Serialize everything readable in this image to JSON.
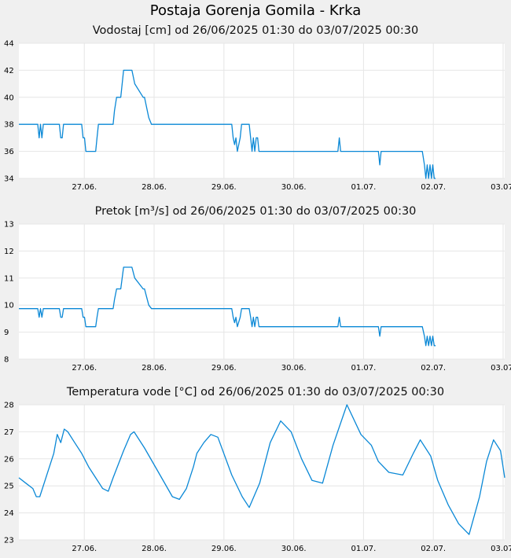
{
  "title": "Postaja Gorenja Gomila - Krka",
  "colors": {
    "line": "#0a88d6",
    "plot_bg": "#ffffff",
    "page_bg": "#f0f0f0",
    "grid": "#e6e6e6"
  },
  "x_ticks": [
    "27.06.",
    "28.06.",
    "29.06.",
    "30.06.",
    "01.07.",
    "02.07.",
    "03.07."
  ],
  "chart_data": [
    {
      "type": "line",
      "title": "Vodostaj [cm] od 26/06/2025 01:30 do 03/07/2025 00:30",
      "xlabel": "",
      "ylabel": "",
      "ylim": [
        34,
        44
      ],
      "y_ticks": [
        "34",
        "36",
        "38",
        "40",
        "42",
        "44"
      ],
      "x_tick_labels": [
        "27.06.",
        "28.06.",
        "29.06.",
        "30.06.",
        "01.07.",
        "02.07.",
        "03.07."
      ],
      "x_range_days": [
        0,
        6.96
      ],
      "grid": true,
      "x": [
        0,
        0.27,
        0.29,
        0.31,
        0.33,
        0.35,
        0.42,
        0.58,
        0.6,
        0.62,
        0.64,
        0.66,
        0.9,
        0.92,
        0.94,
        0.96,
        0.98,
        1.1,
        1.12,
        1.14,
        1.16,
        1.35,
        1.37,
        1.4,
        1.42,
        1.46,
        1.5,
        1.62,
        1.66,
        1.78,
        1.8,
        1.84,
        1.86,
        1.9,
        1.93,
        3.05,
        3.07,
        3.09,
        3.11,
        3.13,
        3.17,
        3.19,
        3.3,
        3.32,
        3.34,
        3.36,
        3.38,
        3.4,
        3.42,
        3.44,
        3.47,
        4.57,
        4.59,
        4.61,
        5.15,
        5.17,
        5.19,
        5.21,
        5.78,
        5.81,
        5.83,
        5.85,
        5.87,
        5.89,
        5.91,
        5.93,
        5.95,
        5.97
      ],
      "values": [
        38,
        38,
        37,
        38,
        37,
        38,
        38,
        38,
        37,
        37,
        38,
        38,
        38,
        37,
        37,
        36,
        36,
        36,
        37,
        38,
        38,
        38,
        39,
        40,
        40,
        40,
        42,
        42,
        41,
        40,
        40,
        39,
        38.5,
        38,
        38,
        38,
        37,
        36.5,
        37,
        36,
        37,
        38,
        38,
        37,
        36,
        37,
        36,
        37,
        37,
        36,
        36,
        36,
        37,
        36,
        36,
        35,
        36,
        36,
        36,
        35,
        34,
        35,
        34,
        35,
        34,
        35,
        34,
        34
      ]
    },
    {
      "type": "line",
      "title": "Pretok [m³/s] od 26/06/2025 01:30 do 03/07/2025 00:30",
      "xlabel": "",
      "ylabel": "",
      "ylim": [
        8,
        13
      ],
      "y_ticks": [
        "8",
        "9",
        "10",
        "11",
        "12",
        "13"
      ],
      "x_tick_labels": [
        "27.06.",
        "28.06.",
        "29.06.",
        "30.06.",
        "01.07.",
        "02.07.",
        "03.07."
      ],
      "x_range_days": [
        0,
        6.96
      ],
      "grid": true,
      "x": [
        0,
        0.27,
        0.29,
        0.31,
        0.33,
        0.35,
        0.42,
        0.58,
        0.6,
        0.62,
        0.64,
        0.66,
        0.9,
        0.92,
        0.94,
        0.96,
        0.98,
        1.1,
        1.12,
        1.14,
        1.16,
        1.35,
        1.37,
        1.4,
        1.42,
        1.46,
        1.5,
        1.62,
        1.66,
        1.78,
        1.8,
        1.84,
        1.86,
        1.9,
        1.93,
        3.05,
        3.07,
        3.09,
        3.11,
        3.13,
        3.17,
        3.19,
        3.3,
        3.32,
        3.34,
        3.36,
        3.38,
        3.4,
        3.42,
        3.44,
        3.47,
        4.57,
        4.59,
        4.61,
        5.15,
        5.17,
        5.19,
        5.21,
        5.78,
        5.81,
        5.83,
        5.85,
        5.87,
        5.89,
        5.91,
        5.93,
        5.95,
        5.97
      ],
      "values": [
        9.87,
        9.87,
        9.55,
        9.87,
        9.55,
        9.87,
        9.87,
        9.87,
        9.55,
        9.55,
        9.87,
        9.87,
        9.87,
        9.55,
        9.55,
        9.2,
        9.2,
        9.2,
        9.55,
        9.87,
        9.87,
        9.87,
        10.2,
        10.6,
        10.6,
        10.6,
        11.4,
        11.4,
        11.0,
        10.6,
        10.6,
        10.2,
        10.0,
        9.87,
        9.87,
        9.87,
        9.55,
        9.35,
        9.55,
        9.2,
        9.55,
        9.87,
        9.87,
        9.55,
        9.2,
        9.55,
        9.2,
        9.55,
        9.55,
        9.2,
        9.2,
        9.2,
        9.55,
        9.2,
        9.2,
        8.85,
        9.2,
        9.2,
        9.2,
        8.85,
        8.5,
        8.85,
        8.5,
        8.85,
        8.5,
        8.85,
        8.5,
        8.5
      ]
    },
    {
      "type": "line",
      "title": "Temperatura vode [°C] od 26/06/2025 01:30 do 03/07/2025 00:30",
      "xlabel": "",
      "ylabel": "",
      "ylim": [
        23,
        28
      ],
      "y_ticks": [
        "23",
        "24",
        "25",
        "26",
        "27",
        "28"
      ],
      "x_tick_labels": [
        "27.06.",
        "28.06.",
        "29.06.",
        "30.06.",
        "01.07.",
        "02.07.",
        "03.07."
      ],
      "x_range_days": [
        0,
        6.96
      ],
      "grid": true,
      "x": [
        0,
        0.1,
        0.2,
        0.25,
        0.3,
        0.4,
        0.5,
        0.55,
        0.6,
        0.65,
        0.7,
        0.8,
        0.9,
        1.0,
        1.1,
        1.2,
        1.28,
        1.35,
        1.5,
        1.6,
        1.65,
        1.8,
        2.0,
        2.2,
        2.3,
        2.4,
        2.5,
        2.55,
        2.65,
        2.75,
        2.85,
        3.05,
        3.2,
        3.3,
        3.45,
        3.6,
        3.75,
        3.9,
        4.05,
        4.2,
        4.35,
        4.5,
        4.7,
        4.9,
        5.05,
        5.15,
        5.3,
        5.5,
        5.65,
        5.75,
        5.9,
        6.0,
        6.15,
        6.3,
        6.45,
        6.6,
        6.7,
        6.8,
        6.9,
        6.96
      ],
      "values": [
        25.3,
        25.1,
        24.9,
        24.6,
        24.6,
        25.4,
        26.2,
        26.9,
        26.6,
        27.1,
        27.0,
        26.6,
        26.2,
        25.7,
        25.3,
        24.9,
        24.8,
        25.3,
        26.3,
        26.9,
        27.0,
        26.4,
        25.5,
        24.6,
        24.5,
        24.9,
        25.7,
        26.2,
        26.6,
        26.9,
        26.8,
        25.4,
        24.6,
        24.2,
        25.1,
        26.6,
        27.4,
        27.0,
        26.0,
        25.2,
        25.1,
        26.5,
        28.0,
        26.9,
        26.5,
        25.9,
        25.5,
        25.4,
        26.2,
        26.7,
        26.1,
        25.2,
        24.3,
        23.6,
        23.2,
        24.6,
        25.9,
        26.7,
        26.3,
        25.3
      ]
    }
  ]
}
